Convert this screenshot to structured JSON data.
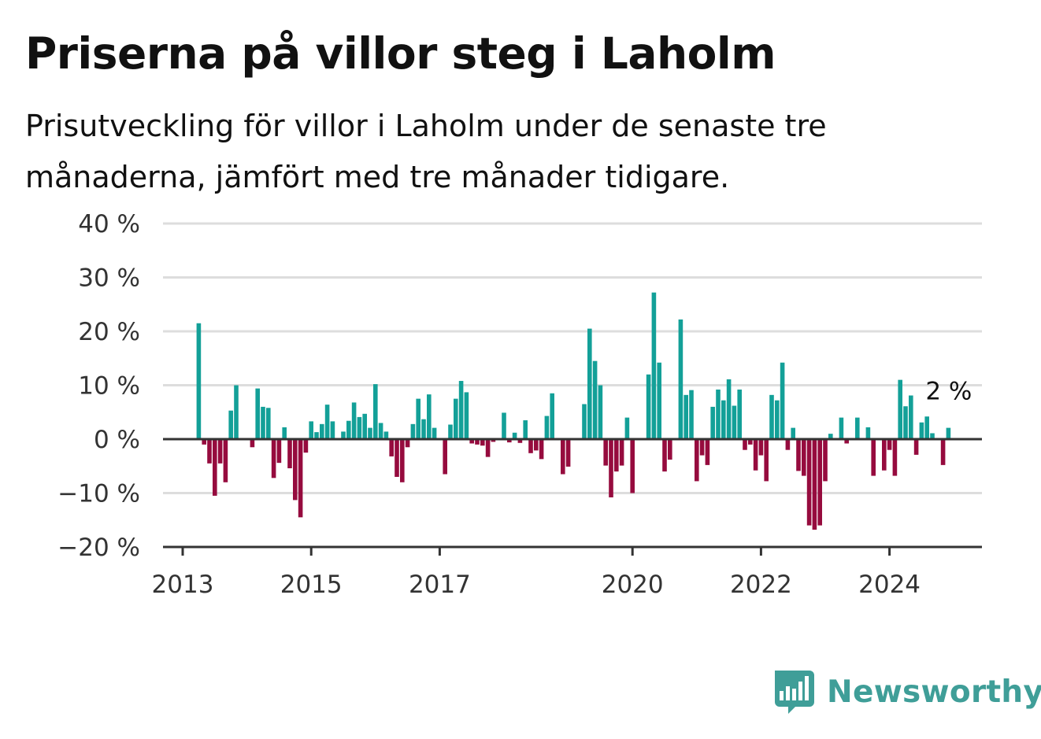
{
  "title": "Priserna på villor steg i Laholm",
  "subtitle": "Prisutveckling för villor i Laholm under de senaste tre månaderna, jämfört med tre månader tidigare.",
  "brand": {
    "name": "Newsworthy",
    "icon": "newsworthy-logo-icon"
  },
  "colors": {
    "positive": "#13a098",
    "negative": "#960b3e",
    "grid": "#dddddd",
    "axis": "#333333",
    "brand": "#3f9e98"
  },
  "chart_data": {
    "type": "bar",
    "title": "Priserna på villor steg i Laholm",
    "xlabel": "",
    "ylabel": "",
    "ylim": [
      -20,
      40
    ],
    "y_ticks": [
      40,
      30,
      20,
      10,
      0,
      -10,
      -20
    ],
    "y_tick_labels": [
      "40 %",
      "30 %",
      "20 %",
      "10 %",
      "0 %",
      "−10 %",
      "−20 %"
    ],
    "x_ticks": [
      "2013",
      "2015",
      "2017",
      "2020",
      "2022",
      "2024"
    ],
    "x_start": "2013-01",
    "grid": true,
    "end_label": "2 %",
    "months": [
      "2013-04",
      "2013-05",
      "2013-06",
      "2013-07",
      "2013-08",
      "2013-09",
      "2013-10",
      "2013-11",
      "2013-12",
      "2014-01",
      "2014-02",
      "2014-03",
      "2014-04",
      "2014-05",
      "2014-06",
      "2014-07",
      "2014-08",
      "2014-09",
      "2014-10",
      "2014-11",
      "2014-12",
      "2015-01",
      "2015-02",
      "2015-03",
      "2015-04",
      "2015-05",
      "2015-06",
      "2015-07",
      "2015-08",
      "2015-09",
      "2015-10",
      "2015-11",
      "2015-12",
      "2016-01",
      "2016-02",
      "2016-03",
      "2016-04",
      "2016-05",
      "2016-06",
      "2016-07",
      "2016-08",
      "2016-09",
      "2016-10",
      "2016-11",
      "2016-12",
      "2017-01",
      "2017-02",
      "2017-03",
      "2017-04",
      "2017-05",
      "2017-06",
      "2017-07",
      "2017-08",
      "2017-09",
      "2017-10",
      "2017-11",
      "2017-12",
      "2018-01",
      "2018-02",
      "2018-03",
      "2018-04",
      "2018-05",
      "2018-06",
      "2018-07",
      "2018-08",
      "2018-09",
      "2018-10",
      "2018-11",
      "2018-12",
      "2019-01",
      "2019-02",
      "2019-03",
      "2019-04",
      "2019-05",
      "2019-06",
      "2019-07",
      "2019-08",
      "2019-09",
      "2019-10",
      "2019-11",
      "2019-12",
      "2020-01",
      "2020-02",
      "2020-03",
      "2020-04",
      "2020-05",
      "2020-06",
      "2020-07",
      "2020-08",
      "2020-09",
      "2020-10",
      "2020-11",
      "2020-12",
      "2021-01",
      "2021-02",
      "2021-03",
      "2021-04",
      "2021-05",
      "2021-06",
      "2021-07",
      "2021-08",
      "2021-09",
      "2021-10",
      "2021-11",
      "2021-12",
      "2022-01",
      "2022-02",
      "2022-03",
      "2022-04",
      "2022-05",
      "2022-06",
      "2022-07",
      "2022-08",
      "2022-09",
      "2022-10",
      "2022-11",
      "2022-12",
      "2023-01",
      "2023-02",
      "2023-03",
      "2023-04",
      "2023-05",
      "2023-06",
      "2023-07",
      "2023-08",
      "2023-09",
      "2023-10",
      "2023-11",
      "2023-12",
      "2024-01",
      "2024-02",
      "2024-03",
      "2024-04",
      "2024-05",
      "2024-06",
      "2024-07",
      "2024-08",
      "2024-09",
      "2024-10",
      "2024-11",
      "2024-12"
    ],
    "values": [
      21.5,
      -1,
      -4.5,
      -10.5,
      -4.5,
      -8,
      5.3,
      10,
      null,
      null,
      -1.5,
      9.4,
      6,
      5.8,
      -7.2,
      -4.4,
      2.2,
      -5.4,
      -11.3,
      -14.5,
      -2.5,
      3.3,
      1.3,
      2.8,
      6.4,
      3.3,
      0.2,
      1.4,
      3.4,
      6.8,
      4.1,
      4.7,
      2.1,
      10.2,
      3,
      1.4,
      -3.2,
      -7,
      -8,
      -1.5,
      2.8,
      7.5,
      3.7,
      8.3,
      2.1,
      null,
      -6.5,
      2.7,
      7.5,
      10.8,
      8.7,
      -0.8,
      -1,
      -1.2,
      -3.3,
      -0.5,
      null,
      4.9,
      -0.6,
      1.2,
      -0.7,
      3.5,
      -2.6,
      -2.1,
      -3.7,
      4.3,
      8.5,
      -0.2,
      -6.5,
      -5.1,
      null,
      null,
      6.5,
      20.5,
      14.5,
      10,
      -4.9,
      -10.8,
      -6,
      -4.9,
      4,
      -10,
      null,
      null,
      12,
      27.2,
      14.2,
      -6,
      -3.8,
      null,
      22.2,
      8.2,
      9.1,
      -7.8,
      -3,
      -4.8,
      6,
      9.2,
      7.2,
      11.1,
      6.2,
      9.2,
      -2,
      -1,
      -5.8,
      -3,
      -7.8,
      8.2,
      7.2,
      14.2,
      -2,
      2.1,
      -5.9,
      -6.8,
      -16,
      -16.8,
      -16,
      -7.8,
      1,
      0.2,
      4,
      -0.8,
      null,
      4,
      null,
      2.2,
      -6.8,
      null,
      -5.8,
      -2,
      -6.8,
      11,
      6.1,
      8.1,
      -2.9,
      3.1,
      4.2,
      1.1,
      null,
      -4.8,
      2.1
    ]
  }
}
